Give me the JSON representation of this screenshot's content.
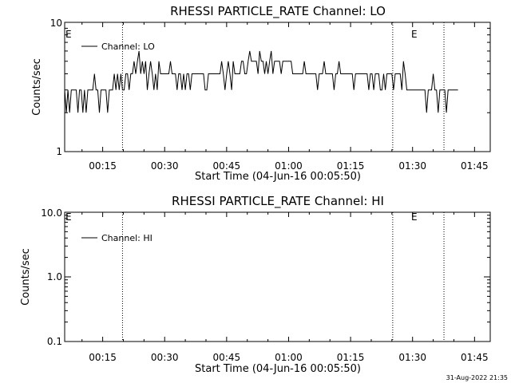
{
  "chart_data": [
    {
      "type": "line",
      "title": "RHESSI PARTICLE_RATE Channel: LO",
      "xlabel": "Start Time (04-Jun-16 00:05:50)",
      "ylabel": "Counts/sec",
      "yscale": "log",
      "ylim": [
        1,
        10
      ],
      "xlim_minutes": [
        5.8,
        108.8
      ],
      "ytick_labels": [
        "1",
        "10"
      ],
      "xtick_labels": [
        "00:15",
        "00:30",
        "00:45",
        "01:00",
        "01:15",
        "01:30",
        "01:45"
      ],
      "xtick_minutes": [
        15,
        30,
        45,
        60,
        75,
        90,
        105
      ],
      "vlines_minutes": [
        19.8,
        85.2,
        97.6
      ],
      "markers": [
        {
          "label": "E",
          "x_minutes": 5.8
        },
        {
          "label": "E",
          "x_minutes": 85.2
        }
      ],
      "legend": "top-left",
      "series": [
        {
          "name": "Channel: LO",
          "x_start_minutes": 5.8,
          "x_step_minutes": 0.4,
          "values": [
            3,
            2,
            3,
            2,
            3,
            3,
            3,
            3,
            2,
            3,
            3,
            2,
            3,
            2,
            3,
            3,
            3,
            3,
            4,
            3,
            3,
            2,
            3,
            3,
            3,
            3,
            2,
            3,
            3,
            3,
            4,
            3,
            4,
            3,
            4,
            3,
            3,
            4,
            4,
            3,
            4,
            4,
            5,
            4,
            5,
            6,
            4,
            5,
            4,
            5,
            3,
            4,
            5,
            4,
            3,
            4,
            3,
            5,
            4,
            4,
            4,
            4,
            4,
            4,
            5,
            4,
            4,
            4,
            3,
            4,
            4,
            3,
            4,
            3,
            4,
            4,
            3,
            4,
            4,
            4,
            4,
            4,
            4,
            4,
            4,
            3,
            3,
            4,
            4,
            4,
            4,
            4,
            4,
            4,
            4,
            5,
            4,
            3,
            4,
            5,
            4,
            3,
            5,
            4,
            4,
            4,
            4,
            5,
            5,
            4,
            4,
            5,
            6,
            5,
            5,
            5,
            5,
            4,
            6,
            5,
            5,
            4,
            5,
            4,
            5,
            6,
            4,
            5,
            5,
            5,
            5,
            4,
            5,
            5,
            5,
            5,
            5,
            5,
            4,
            4,
            4,
            4,
            4,
            4,
            4,
            5,
            4,
            4,
            4,
            4,
            4,
            4,
            4,
            3,
            4,
            4,
            4,
            5,
            4,
            4,
            4,
            4,
            4,
            3,
            4,
            4,
            5,
            4,
            4,
            4,
            4,
            4,
            4,
            4,
            4,
            3,
            4,
            4,
            4,
            4,
            4,
            4,
            4,
            4,
            3,
            4,
            4,
            3,
            4,
            4,
            4,
            3,
            3,
            4,
            3,
            4,
            4,
            4,
            4,
            3,
            4,
            4,
            4,
            4,
            3,
            5,
            4,
            3,
            3,
            3,
            3,
            3,
            3,
            3,
            3,
            3,
            3,
            3,
            3,
            2,
            3,
            3,
            3,
            4,
            3,
            3,
            2,
            3,
            3,
            3,
            3,
            2,
            3,
            3,
            3,
            3,
            3,
            3,
            3
          ]
        }
      ]
    },
    {
      "type": "line",
      "title": "RHESSI PARTICLE_RATE Channel: HI",
      "xlabel": "Start Time (04-Jun-16 00:05:50)",
      "ylabel": "Counts/sec",
      "yscale": "log",
      "ylim": [
        0.1,
        10.0
      ],
      "xlim_minutes": [
        5.8,
        108.8
      ],
      "ytick_labels": [
        "0.1",
        "1.0",
        "10.0"
      ],
      "xtick_labels": [
        "00:15",
        "00:30",
        "00:45",
        "01:00",
        "01:15",
        "01:30",
        "01:45"
      ],
      "xtick_minutes": [
        15,
        30,
        45,
        60,
        75,
        90,
        105
      ],
      "vlines_minutes": [
        19.8,
        85.2,
        97.6
      ],
      "markers": [
        {
          "label": "E",
          "x_minutes": 5.8
        },
        {
          "label": "E",
          "x_minutes": 85.2
        }
      ],
      "legend": "top-left",
      "series": [
        {
          "name": "Channel: HI",
          "values": []
        }
      ]
    }
  ],
  "footer": {
    "timestamp": "31-Aug-2022 21:35"
  }
}
